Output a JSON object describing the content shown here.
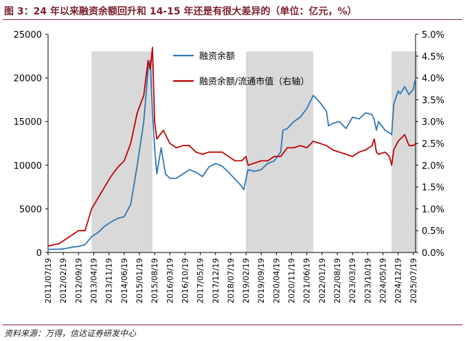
{
  "title": "图 3：24 年以来融资余额回升和 14-15 年还是有很大差异的（单位：亿元，%）",
  "source": "资料来源：万得，信达证券研发中心",
  "colors": {
    "blue": "#2E75B6",
    "red": "#C00000",
    "shade": "#D9D9D9",
    "axis": "#000000",
    "title": "#7A1F2B"
  },
  "chart_data": {
    "type": "line",
    "left_axis": {
      "ylim": [
        0,
        25000
      ],
      "ticks": [
        "0",
        "5000",
        "10000",
        "15000",
        "20000",
        "25000"
      ]
    },
    "right_axis": {
      "ylim": [
        0,
        5.0
      ],
      "unit": "%",
      "ticks": [
        "0.0%",
        "0.5%",
        "1.0%",
        "1.5%",
        "2.0%",
        "2.5%",
        "3.0%",
        "3.5%",
        "4.0%",
        "4.5%",
        "5.0%"
      ]
    },
    "x_ticks": [
      "2011/07/19",
      "2012/02/19",
      "2012/09/19",
      "2013/04/19",
      "2013/11/19",
      "2014/06/19",
      "2015/01/19",
      "2015/08/19",
      "2016/03/19",
      "2016/10/19",
      "2017/05/19",
      "2017/12/19",
      "2018/07/19",
      "2019/02/19",
      "2019/09/19",
      "2020/04/19",
      "2020/11/19",
      "2021/06/19",
      "2022/01/19",
      "2022/08/19",
      "2023/03/19",
      "2023/10/19",
      "2024/05/19",
      "2024/12/19",
      "2025/07/19"
    ],
    "shaded_periods": [
      {
        "start": "2013/03",
        "end": "2015/07"
      },
      {
        "start": "2019/02",
        "end": "2021/09"
      },
      {
        "start": "2024/09",
        "end": "2025/09"
      }
    ],
    "legend_position": "top-center",
    "series": [
      {
        "name": "融资余额",
        "axis": "left",
        "color": "#2E75B6",
        "points": [
          [
            "2011/07",
            350
          ],
          [
            "2011/12",
            380
          ],
          [
            "2012/03",
            450
          ],
          [
            "2012/06",
            600
          ],
          [
            "2012/09",
            700
          ],
          [
            "2012/12",
            900
          ],
          [
            "2013/03",
            1800
          ],
          [
            "2013/06",
            2300
          ],
          [
            "2013/09",
            3000
          ],
          [
            "2013/12",
            3500
          ],
          [
            "2014/03",
            3900
          ],
          [
            "2014/06",
            4100
          ],
          [
            "2014/09",
            5500
          ],
          [
            "2014/12",
            10000
          ],
          [
            "2015/03",
            15000
          ],
          [
            "2015/04",
            18000
          ],
          [
            "2015/05",
            21000
          ],
          [
            "2015/06",
            22000
          ],
          [
            "2015/07",
            16000
          ],
          [
            "2015/08",
            12000
          ],
          [
            "2015/09",
            9000
          ],
          [
            "2015/11",
            12000
          ],
          [
            "2016/01",
            9000
          ],
          [
            "2016/03",
            8500
          ],
          [
            "2016/06",
            8500
          ],
          [
            "2016/09",
            9000
          ],
          [
            "2016/12",
            9500
          ],
          [
            "2017/03",
            9200
          ],
          [
            "2017/06",
            8700
          ],
          [
            "2017/09",
            9800
          ],
          [
            "2017/12",
            10200
          ],
          [
            "2018/03",
            9900
          ],
          [
            "2018/06",
            9200
          ],
          [
            "2018/09",
            8400
          ],
          [
            "2018/12",
            7600
          ],
          [
            "2019/01",
            7200
          ],
          [
            "2019/02",
            8400
          ],
          [
            "2019/03",
            9500
          ],
          [
            "2019/06",
            9300
          ],
          [
            "2019/09",
            9500
          ],
          [
            "2019/12",
            10200
          ],
          [
            "2020/03",
            10500
          ],
          [
            "2020/06",
            11500
          ],
          [
            "2020/07",
            14000
          ],
          [
            "2020/09",
            14200
          ],
          [
            "2020/12",
            15000
          ],
          [
            "2021/03",
            15500
          ],
          [
            "2021/06",
            16500
          ],
          [
            "2021/09",
            18000
          ],
          [
            "2021/12",
            17200
          ],
          [
            "2022/03",
            16200
          ],
          [
            "2022/04",
            14500
          ],
          [
            "2022/06",
            14800
          ],
          [
            "2022/09",
            15000
          ],
          [
            "2022/12",
            14200
          ],
          [
            "2023/03",
            15500
          ],
          [
            "2023/06",
            15300
          ],
          [
            "2023/09",
            16000
          ],
          [
            "2023/12",
            15800
          ],
          [
            "2024/01",
            15200
          ],
          [
            "2024/02",
            14000
          ],
          [
            "2024/03",
            15000
          ],
          [
            "2024/06",
            14000
          ],
          [
            "2024/08",
            13700
          ],
          [
            "2024/09",
            13500
          ],
          [
            "2024/10",
            17000
          ],
          [
            "2024/12",
            18500
          ],
          [
            "2025/01",
            18200
          ],
          [
            "2025/03",
            19000
          ],
          [
            "2025/05",
            18100
          ],
          [
            "2025/07",
            18700
          ],
          [
            "2025/08",
            20000
          ]
        ]
      },
      {
        "name": "融资余额/流通市值（右轴）",
        "axis": "right",
        "color": "#C00000",
        "points": [
          [
            "2011/07",
            0.15
          ],
          [
            "2011/12",
            0.2
          ],
          [
            "2012/03",
            0.3
          ],
          [
            "2012/06",
            0.4
          ],
          [
            "2012/09",
            0.5
          ],
          [
            "2012/12",
            0.5
          ],
          [
            "2013/03",
            1.0
          ],
          [
            "2013/06",
            1.25
          ],
          [
            "2013/09",
            1.5
          ],
          [
            "2013/12",
            1.75
          ],
          [
            "2014/03",
            1.95
          ],
          [
            "2014/06",
            2.1
          ],
          [
            "2014/09",
            2.5
          ],
          [
            "2014/12",
            3.2
          ],
          [
            "2015/03",
            3.6
          ],
          [
            "2015/05",
            4.4
          ],
          [
            "2015/06",
            4.2
          ],
          [
            "2015/07",
            4.7
          ],
          [
            "2015/08",
            3.0
          ],
          [
            "2015/09",
            2.6
          ],
          [
            "2015/12",
            2.8
          ],
          [
            "2016/03",
            2.5
          ],
          [
            "2016/06",
            2.4
          ],
          [
            "2016/09",
            2.45
          ],
          [
            "2016/12",
            2.45
          ],
          [
            "2017/03",
            2.3
          ],
          [
            "2017/06",
            2.25
          ],
          [
            "2017/09",
            2.3
          ],
          [
            "2017/12",
            2.3
          ],
          [
            "2018/03",
            2.3
          ],
          [
            "2018/06",
            2.2
          ],
          [
            "2018/09",
            2.1
          ],
          [
            "2018/12",
            2.1
          ],
          [
            "2019/02",
            2.2
          ],
          [
            "2019/03",
            2.0
          ],
          [
            "2019/06",
            2.05
          ],
          [
            "2019/09",
            2.1
          ],
          [
            "2019/12",
            2.1
          ],
          [
            "2020/03",
            2.2
          ],
          [
            "2020/06",
            2.2
          ],
          [
            "2020/09",
            2.4
          ],
          [
            "2020/12",
            2.4
          ],
          [
            "2021/03",
            2.45
          ],
          [
            "2021/06",
            2.4
          ],
          [
            "2021/09",
            2.55
          ],
          [
            "2021/12",
            2.5
          ],
          [
            "2022/03",
            2.45
          ],
          [
            "2022/06",
            2.35
          ],
          [
            "2022/09",
            2.3
          ],
          [
            "2022/12",
            2.25
          ],
          [
            "2023/03",
            2.2
          ],
          [
            "2023/06",
            2.3
          ],
          [
            "2023/09",
            2.35
          ],
          [
            "2023/12",
            2.45
          ],
          [
            "2024/01",
            2.6
          ],
          [
            "2024/02",
            2.3
          ],
          [
            "2024/03",
            2.25
          ],
          [
            "2024/06",
            2.3
          ],
          [
            "2024/08",
            2.2
          ],
          [
            "2024/09",
            2.0
          ],
          [
            "2024/10",
            2.35
          ],
          [
            "2024/12",
            2.55
          ],
          [
            "2025/01",
            2.6
          ],
          [
            "2025/03",
            2.7
          ],
          [
            "2025/05",
            2.45
          ],
          [
            "2025/07",
            2.45
          ],
          [
            "2025/08",
            2.5
          ]
        ]
      }
    ]
  }
}
